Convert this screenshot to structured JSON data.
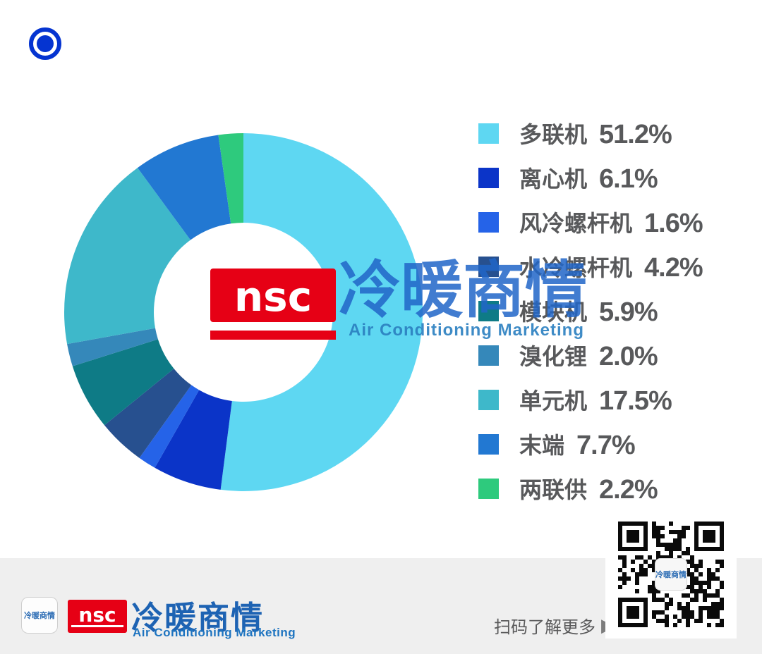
{
  "header": {
    "bullet_color": "#0534d1"
  },
  "chart_data": {
    "type": "pie",
    "subtype": "donut",
    "inner_radius_ratio": 0.5,
    "start_angle_deg": -90,
    "direction": "clockwise",
    "legend_position": "right",
    "unit": "%",
    "series": [
      {
        "label": "多联机",
        "value": 51.2,
        "value_label": "51.2%",
        "color": "#5ed7f2"
      },
      {
        "label": "离心机",
        "value": 6.1,
        "value_label": "6.1%",
        "color": "#0b34c8"
      },
      {
        "label": "风冷螺杆机",
        "value": 1.6,
        "value_label": "1.6%",
        "color": "#2563e8"
      },
      {
        "label": "水冷螺杆机",
        "value": 4.2,
        "value_label": "4.2%",
        "color": "#27508f"
      },
      {
        "label": "模块机",
        "value": 5.9,
        "value_label": "5.9%",
        "color": "#0e7b86"
      },
      {
        "label": "溴化锂",
        "value": 2.0,
        "value_label": "2.0%",
        "color": "#3588ba"
      },
      {
        "label": "单元机",
        "value": 17.5,
        "value_label": "17.5%",
        "color": "#3eb8ca"
      },
      {
        "label": "末端",
        "value": 7.7,
        "value_label": "7.7%",
        "color": "#2278d2"
      },
      {
        "label": "两联供",
        "value": 2.2,
        "value_label": "2.2%",
        "color": "#2eca7d"
      }
    ]
  },
  "watermark": {
    "nsc": "nsc",
    "cn": "冷暖商情",
    "en": "Air Conditioning Marketing",
    "red": "#e60015",
    "blue": "#2166c8"
  },
  "qr": {
    "center_label": "冷暖商情"
  },
  "footer": {
    "badge_text": "冷暖商情",
    "nsc": "nsc",
    "cn_logo_text": "冷暖商情",
    "en_logo_text": "Air Conditioning Marketing",
    "scan_text": "扫码了解更多",
    "scan_arrow": "▶"
  }
}
